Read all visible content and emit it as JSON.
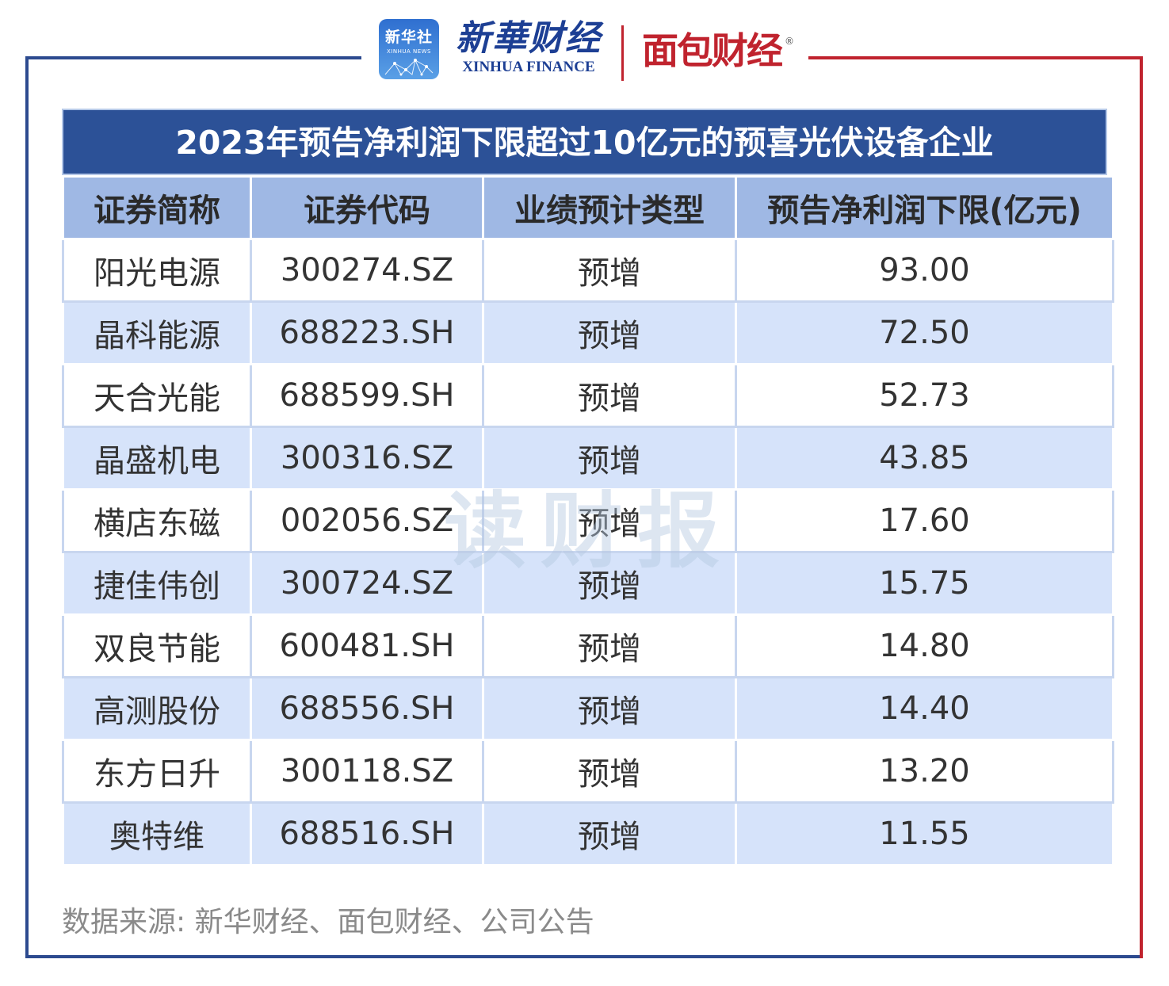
{
  "header": {
    "xinhua_news_cn": "新华社",
    "xinhua_news_en": "XINHUA NEWS",
    "xinhua_finance_cn": "新華财经",
    "xinhua_finance_en": "XINHUA FINANCE",
    "mianbao_caijing": "面包财经",
    "registered_mark": "®"
  },
  "table": {
    "title": "2023年预告净利润下限超过10亿元的预喜光伏设备企业",
    "columns": [
      "证券简称",
      "证券代码",
      "业绩预计类型",
      "预告净利润下限(亿元)"
    ],
    "rows": [
      {
        "name": "阳光电源",
        "code": "300274.SZ",
        "type": "预增",
        "value": "93.00"
      },
      {
        "name": "晶科能源",
        "code": "688223.SH",
        "type": "预增",
        "value": "72.50"
      },
      {
        "name": "天合光能",
        "code": "688599.SH",
        "type": "预增",
        "value": "52.73"
      },
      {
        "name": "晶盛机电",
        "code": "300316.SZ",
        "type": "预增",
        "value": "43.85"
      },
      {
        "name": "横店东磁",
        "code": "002056.SZ",
        "type": "预增",
        "value": "17.60"
      },
      {
        "name": "捷佳伟创",
        "code": "300724.SZ",
        "type": "预增",
        "value": "15.75"
      },
      {
        "name": "双良节能",
        "code": "600481.SH",
        "type": "预增",
        "value": "14.80"
      },
      {
        "name": "高测股份",
        "code": "688556.SH",
        "type": "预增",
        "value": "14.40"
      },
      {
        "name": "东方日升",
        "code": "300118.SZ",
        "type": "预增",
        "value": "13.20"
      },
      {
        "name": "奥特维",
        "code": "688516.SH",
        "type": "预增",
        "value": "11.55"
      }
    ]
  },
  "watermark": "读财报",
  "source": "数据来源: 新华财经、面包财经、公司公告",
  "colors": {
    "title_bg": "#2c5197",
    "header_bg": "#9fb8e4",
    "row_alt_bg": "#d6e3fa",
    "frame_blue": "#2c4a8f",
    "frame_red": "#c0232e"
  }
}
